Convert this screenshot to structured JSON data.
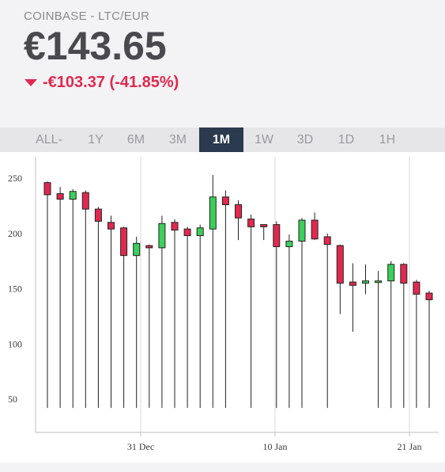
{
  "header": {
    "ticker": "COINBASE - LTC/EUR",
    "price": "€143.65",
    "change": "-€103.37 (-41.85%)",
    "change_color": "#e0294f"
  },
  "tabs": [
    {
      "label": "ALL-TIME",
      "active": false
    },
    {
      "label": "1Y",
      "active": false
    },
    {
      "label": "6M",
      "active": false
    },
    {
      "label": "3M",
      "active": false
    },
    {
      "label": "1M",
      "active": true
    },
    {
      "label": "1W",
      "active": false
    },
    {
      "label": "3D",
      "active": false
    },
    {
      "label": "1D",
      "active": false
    },
    {
      "label": "1H",
      "active": false
    }
  ],
  "chart_data": {
    "type": "candlestick",
    "x_ticks": [
      "31 Dec",
      "10 Jan",
      "21 Jan"
    ],
    "y_ticks": [
      50,
      100,
      150,
      200,
      250
    ],
    "ylim": [
      30,
      260
    ],
    "grid": true,
    "up_color": "#3ccf5b",
    "down_color": "#e0294f",
    "candles": [
      {
        "open": 246,
        "high": 247,
        "low": 42,
        "close": 235
      },
      {
        "open": 236,
        "high": 242,
        "low": 42,
        "close": 231
      },
      {
        "open": 231,
        "high": 240,
        "low": 42,
        "close": 238
      },
      {
        "open": 237,
        "high": 239,
        "low": 42,
        "close": 222
      },
      {
        "open": 222,
        "high": 224,
        "low": 42,
        "close": 211
      },
      {
        "open": 210,
        "high": 216,
        "low": 42,
        "close": 204
      },
      {
        "open": 205,
        "high": 206,
        "low": 42,
        "close": 180
      },
      {
        "open": 180,
        "high": 197,
        "low": 42,
        "close": 191
      },
      {
        "open": 189,
        "high": 190,
        "low": 42,
        "close": 187
      },
      {
        "open": 187,
        "high": 216,
        "low": 42,
        "close": 209
      },
      {
        "open": 210,
        "high": 213,
        "low": 42,
        "close": 203
      },
      {
        "open": 204,
        "high": 206,
        "low": 42,
        "close": 198
      },
      {
        "open": 198,
        "high": 208,
        "low": 42,
        "close": 205
      },
      {
        "open": 204,
        "high": 253,
        "low": 42,
        "close": 233
      },
      {
        "open": 233,
        "high": 239,
        "low": 42,
        "close": 226
      },
      {
        "open": 226,
        "high": 230,
        "low": 194,
        "close": 214
      },
      {
        "open": 213,
        "high": 217,
        "low": 42,
        "close": 206
      },
      {
        "open": 208,
        "high": 208,
        "low": 194,
        "close": 206
      },
      {
        "open": 208,
        "high": 211,
        "low": 42,
        "close": 188
      },
      {
        "open": 188,
        "high": 199,
        "low": 42,
        "close": 193
      },
      {
        "open": 193,
        "high": 214,
        "low": 42,
        "close": 212
      },
      {
        "open": 212,
        "high": 219,
        "low": 194,
        "close": 195
      },
      {
        "open": 197,
        "high": 200,
        "low": 42,
        "close": 190
      },
      {
        "open": 189,
        "high": 190,
        "low": 127,
        "close": 155
      },
      {
        "open": 156,
        "high": 173,
        "low": 111,
        "close": 153
      },
      {
        "open": 155,
        "high": 172,
        "low": 145,
        "close": 157
      },
      {
        "open": 157,
        "high": 166,
        "low": 42,
        "close": 157
      },
      {
        "open": 157,
        "high": 175,
        "low": 42,
        "close": 172
      },
      {
        "open": 172,
        "high": 173,
        "low": 42,
        "close": 155
      },
      {
        "open": 156,
        "high": 158,
        "low": 42,
        "close": 145
      },
      {
        "open": 146,
        "high": 148,
        "low": 42,
        "close": 140
      }
    ]
  }
}
